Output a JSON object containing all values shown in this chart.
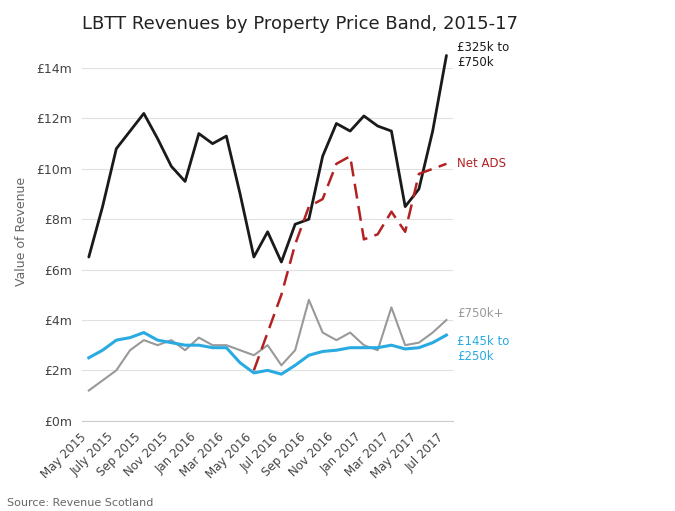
{
  "title": "LBTT Revenues by Property Price Band, 2015-17",
  "ylabel": "Value of Revenue",
  "source": "Source: Revenue Scotland",
  "x_labels": [
    "May 2015",
    "July 2015",
    "Sep 2015",
    "Nov 2015",
    "Jan 2016",
    "Mar 2016",
    "May 2016",
    "Jul 2016",
    "Sep 2016",
    "Nov 2016",
    "Jan 2017",
    "Mar 2017",
    "May 2017",
    "Jul 2017"
  ],
  "ylim": [
    0,
    15
  ],
  "ytick_vals": [
    0,
    2,
    4,
    6,
    8,
    10,
    12,
    14
  ],
  "ytick_labels": [
    "£0m",
    "£2m",
    "£4m",
    "£6m",
    "£8m",
    "£10m",
    "£12m",
    "£14m"
  ],
  "background_color": "#ffffff",
  "band_325_750": [
    6.5,
    8.5,
    10.8,
    11.5,
    12.2,
    11.2,
    10.1,
    9.5,
    11.4,
    11.0,
    11.3,
    9.0,
    6.5,
    7.5,
    6.3,
    7.8,
    8.0,
    10.5,
    11.8,
    11.5,
    12.1,
    11.7,
    11.5,
    8.5,
    9.2,
    11.5,
    14.5
  ],
  "band_750plus": [
    1.2,
    1.6,
    2.0,
    2.8,
    3.2,
    3.0,
    3.2,
    2.8,
    3.3,
    3.0,
    3.0,
    2.8,
    2.6,
    3.0,
    2.2,
    2.8,
    4.8,
    3.5,
    3.2,
    3.5,
    3.0,
    2.8,
    4.5,
    3.0,
    3.1,
    3.5,
    4.0
  ],
  "band_145_250": [
    2.5,
    2.8,
    3.2,
    3.3,
    3.5,
    3.2,
    3.1,
    3.0,
    3.0,
    2.9,
    2.9,
    2.3,
    1.9,
    2.0,
    1.85,
    2.2,
    2.6,
    2.75,
    2.8,
    2.9,
    2.9,
    2.9,
    3.0,
    2.85,
    2.9,
    3.1,
    3.4
  ],
  "net_ads_x": [
    12,
    13,
    14,
    15,
    16,
    17,
    18,
    19,
    20,
    21,
    22,
    23,
    24,
    25,
    26
  ],
  "net_ads_y": [
    2.0,
    3.5,
    5.0,
    7.0,
    8.5,
    8.8,
    10.2,
    10.5,
    7.2,
    7.4,
    8.3,
    7.5,
    9.8,
    10.0,
    10.2
  ],
  "color_325_750": "#1a1a1a",
  "color_750plus": "#999999",
  "color_145_250": "#29abe2",
  "color_net_ads": "#b22222",
  "label_325_750": "£325k to\n£750k",
  "label_750plus": "£750k+",
  "label_145_250": "£145k to\n£250k",
  "label_net_ads": "Net ADS"
}
